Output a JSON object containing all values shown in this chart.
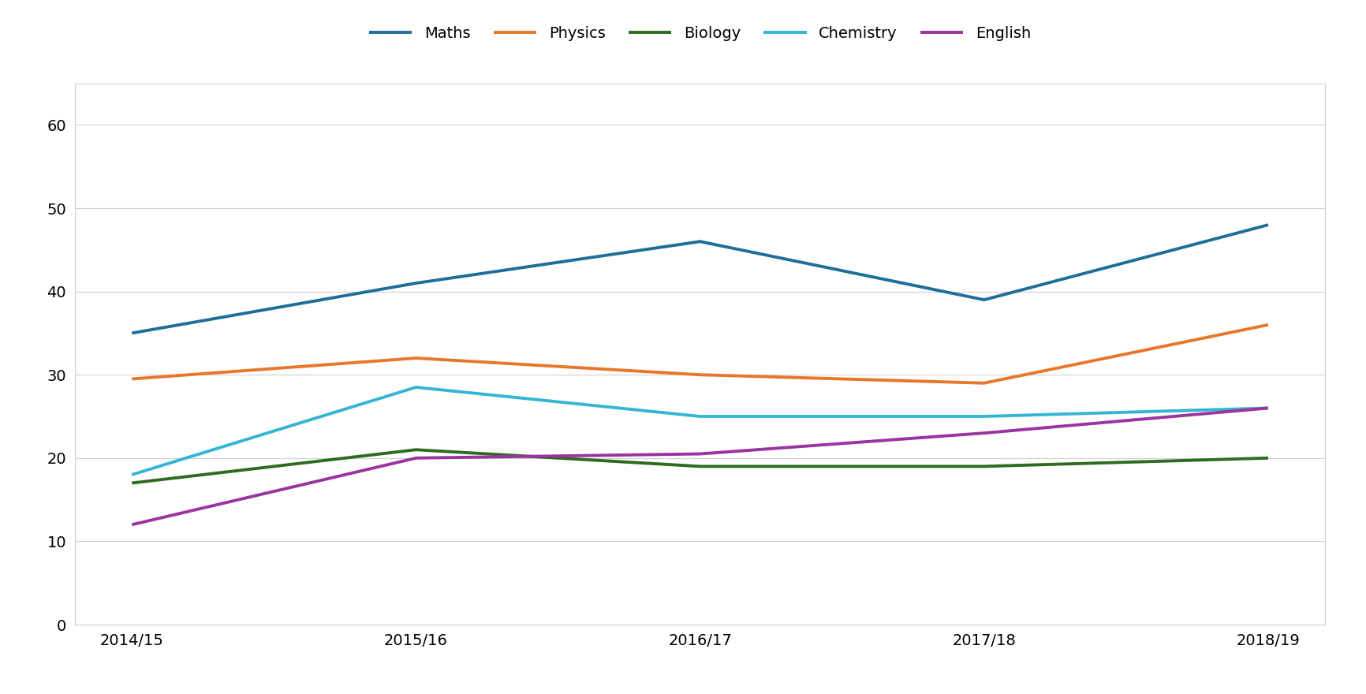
{
  "years": [
    "2014/15",
    "2015/16",
    "2016/17",
    "2017/18",
    "2018/19"
  ],
  "series": {
    "Maths": [
      35,
      41,
      46,
      39,
      48
    ],
    "Physics": [
      29.5,
      32,
      30,
      29,
      36
    ],
    "Biology": [
      17,
      21,
      19,
      19,
      20
    ],
    "Chemistry": [
      18,
      28.5,
      25,
      25,
      26
    ],
    "English": [
      12,
      20,
      20.5,
      23,
      26
    ]
  },
  "series_order": [
    "Maths",
    "Physics",
    "Biology",
    "Chemistry",
    "English"
  ],
  "colors": {
    "Maths": "#1f6e99",
    "Physics": "#e8762b",
    "Biology": "#2e6b1f",
    "Chemistry": "#35b5d4",
    "English": "#9b33a0"
  },
  "ylim": [
    0,
    65
  ],
  "yticks": [
    0,
    10,
    20,
    30,
    40,
    50,
    60
  ],
  "line_width": 2.8,
  "background_color": "#ffffff",
  "plot_bg_color": "#ffffff",
  "grid_color": "#d0d0d0",
  "border_color": "#d0d0d0",
  "legend_fontsize": 14,
  "tick_fontsize": 14
}
